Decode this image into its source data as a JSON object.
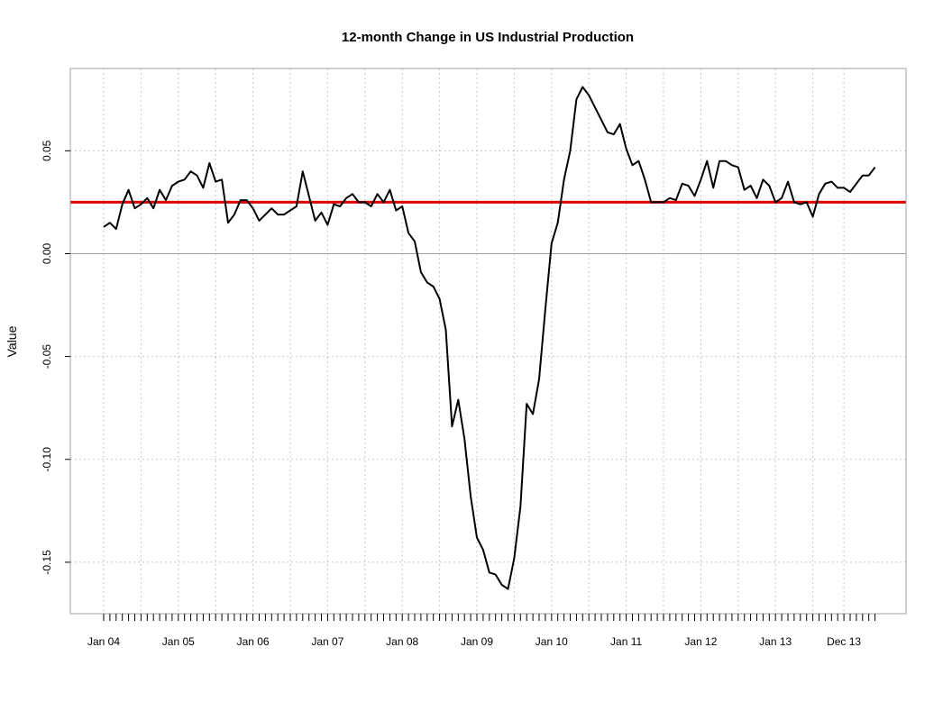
{
  "chart_data": {
    "type": "line",
    "title": "12-month Change in US Industrial Production",
    "xlabel": "",
    "ylabel": "Value",
    "ylim": [
      -0.175,
      0.09
    ],
    "x_tick_labels": [
      "Jan 04",
      "Jan 05",
      "Jan 06",
      "Jan 07",
      "Jan 08",
      "Jan 09",
      "Jan 10",
      "Jan 11",
      "Jan 12",
      "Jan 13",
      "Dec 13"
    ],
    "y_ticks": [
      -0.15,
      -0.1,
      -0.05,
      0.0,
      0.05
    ],
    "y_tick_labels": [
      "-0.15",
      "-0.10",
      "-0.05",
      "0.00",
      "0.05"
    ],
    "grid": true,
    "x": [
      "Jan 04",
      "Feb 04",
      "Mar 04",
      "Apr 04",
      "May 04",
      "Jun 04",
      "Jul 04",
      "Aug 04",
      "Sep 04",
      "Oct 04",
      "Nov 04",
      "Dec 04",
      "Jan 05",
      "Feb 05",
      "Mar 05",
      "Apr 05",
      "May 05",
      "Jun 05",
      "Jul 05",
      "Aug 05",
      "Sep 05",
      "Oct 05",
      "Nov 05",
      "Dec 05",
      "Jan 06",
      "Feb 06",
      "Mar 06",
      "Apr 06",
      "May 06",
      "Jun 06",
      "Jul 06",
      "Aug 06",
      "Sep 06",
      "Oct 06",
      "Nov 06",
      "Dec 06",
      "Jan 07",
      "Feb 07",
      "Mar 07",
      "Apr 07",
      "May 07",
      "Jun 07",
      "Jul 07",
      "Aug 07",
      "Sep 07",
      "Oct 07",
      "Nov 07",
      "Dec 07",
      "Jan 08",
      "Feb 08",
      "Mar 08",
      "Apr 08",
      "May 08",
      "Jun 08",
      "Jul 08",
      "Aug 08",
      "Sep 08",
      "Oct 08",
      "Nov 08",
      "Dec 08",
      "Jan 09",
      "Feb 09",
      "Mar 09",
      "Apr 09",
      "May 09",
      "Jun 09",
      "Jul 09",
      "Aug 09",
      "Sep 09",
      "Oct 09",
      "Nov 09",
      "Dec 09",
      "Jan 10",
      "Feb 10",
      "Mar 10",
      "Apr 10",
      "May 10",
      "Jun 10",
      "Jul 10",
      "Aug 10",
      "Sep 10",
      "Oct 10",
      "Nov 10",
      "Dec 10",
      "Jan 11",
      "Feb 11",
      "Mar 11",
      "Apr 11",
      "May 11",
      "Jun 11",
      "Jul 11",
      "Aug 11",
      "Sep 11",
      "Oct 11",
      "Nov 11",
      "Dec 11",
      "Jan 12",
      "Feb 12",
      "Mar 12",
      "Apr 12",
      "May 12",
      "Jun 12",
      "Jul 12",
      "Aug 12",
      "Sep 12",
      "Oct 12",
      "Nov 12",
      "Dec 12",
      "Jan 13",
      "Feb 13",
      "Mar 13",
      "Apr 13",
      "May 13",
      "Jun 13",
      "Jul 13",
      "Aug 13",
      "Sep 13",
      "Oct 13",
      "Nov 13",
      "Dec 13",
      "Jan 14",
      "Feb 14",
      "Mar 14",
      "Apr 14",
      "May 14"
    ],
    "series": [
      {
        "color": "#000000",
        "values": [
          0.013,
          0.015,
          0.012,
          0.024,
          0.031,
          0.022,
          0.024,
          0.027,
          0.022,
          0.031,
          0.026,
          0.033,
          0.035,
          0.036,
          0.04,
          0.038,
          0.032,
          0.044,
          0.035,
          0.036,
          0.015,
          0.019,
          0.026,
          0.026,
          0.022,
          0.016,
          0.019,
          0.022,
          0.019,
          0.019,
          0.021,
          0.023,
          0.04,
          0.028,
          0.016,
          0.02,
          0.014,
          0.024,
          0.023,
          0.027,
          0.029,
          0.025,
          0.025,
          0.023,
          0.029,
          0.025,
          0.031,
          0.021,
          0.023,
          0.01,
          0.006,
          -0.009,
          -0.014,
          -0.016,
          -0.022,
          -0.037,
          -0.084,
          -0.071,
          -0.09,
          -0.118,
          -0.138,
          -0.144,
          -0.155,
          -0.156,
          -0.161,
          -0.163,
          -0.148,
          -0.123,
          -0.073,
          -0.078,
          -0.061,
          -0.027,
          0.005,
          0.015,
          0.036,
          0.05,
          0.075,
          0.081,
          0.077,
          0.071,
          0.065,
          0.059,
          0.058,
          0.063,
          0.051,
          0.043,
          0.045,
          0.036,
          0.025,
          0.025,
          0.025,
          0.027,
          0.026,
          0.034,
          0.033,
          0.028,
          0.036,
          0.045,
          0.032,
          0.045,
          0.045,
          0.043,
          0.042,
          0.031,
          0.033,
          0.027,
          0.036,
          0.033,
          0.025,
          0.027,
          0.035,
          0.025,
          0.024,
          0.025,
          0.018,
          0.029,
          0.034,
          0.035,
          0.032,
          0.032,
          0.03,
          0.034,
          0.038,
          0.038,
          0.042
        ]
      }
    ],
    "reference_lines": [
      {
        "orientation": "horizontal",
        "value": 0.025,
        "color": "#dd0000"
      },
      {
        "orientation": "horizontal",
        "value": 0.0,
        "color": "#a0a0a0"
      }
    ]
  }
}
